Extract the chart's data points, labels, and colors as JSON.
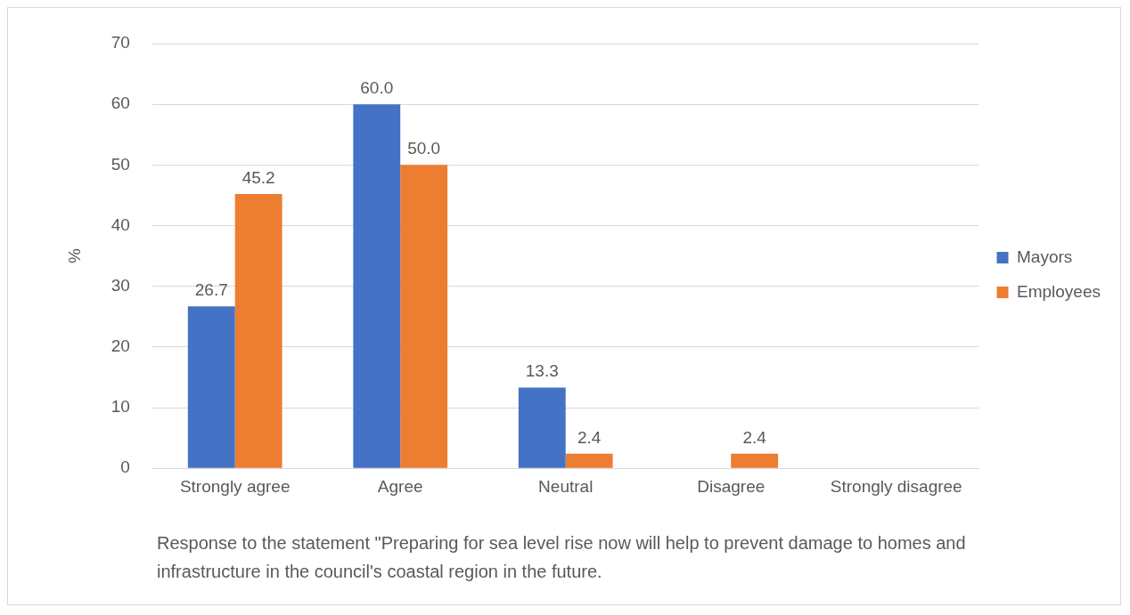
{
  "chart_data": {
    "type": "bar",
    "ylabel": "%",
    "categories": [
      "Strongly agree",
      "Agree",
      "Neutral",
      "Disagree",
      "Strongly disagree"
    ],
    "series": [
      {
        "name": "Mayors",
        "color": "#4472c4",
        "values": [
          26.7,
          60.0,
          13.3,
          0,
          0
        ],
        "value_labels": [
          "26.7",
          "60.0",
          "13.3",
          null,
          null
        ]
      },
      {
        "name": "Employees",
        "color": "#ed7d31",
        "values": [
          45.2,
          50.0,
          2.4,
          2.4,
          0
        ],
        "value_labels": [
          "45.2",
          "50.0",
          "2.4",
          "2.4",
          null
        ]
      }
    ],
    "ylim": [
      0,
      70
    ],
    "yticks": [
      0,
      10,
      20,
      30,
      40,
      50,
      60,
      70
    ],
    "grid": "y",
    "legend": "right",
    "annotations": [
      "Response to the statement \"Preparing for sea level rise now will help to prevent damage to homes and infrastructure in the council's coastal region in the future."
    ]
  }
}
